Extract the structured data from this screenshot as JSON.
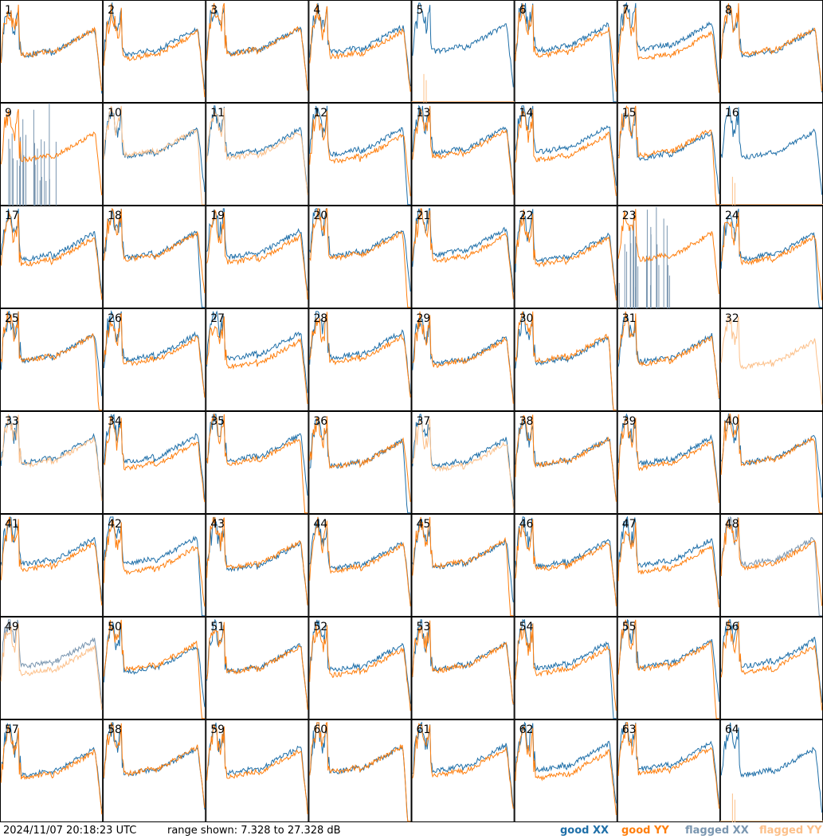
{
  "chart_data": {
    "type": "line",
    "panel_count": 64,
    "panel_labels": [
      "1",
      "2",
      "3",
      "4",
      "5",
      "6",
      "7",
      "8",
      "9",
      "10",
      "11",
      "12",
      "13",
      "14",
      "15",
      "16",
      "17",
      "18",
      "19",
      "20",
      "21",
      "22",
      "23",
      "24",
      "25",
      "26",
      "27",
      "28",
      "29",
      "30",
      "31",
      "32",
      "33",
      "34",
      "35",
      "36",
      "37",
      "38",
      "39",
      "40",
      "41",
      "42",
      "43",
      "44",
      "45",
      "46",
      "47",
      "48",
      "49",
      "50",
      "51",
      "52",
      "53",
      "54",
      "55",
      "56",
      "57",
      "58",
      "59",
      "60",
      "61",
      "62",
      "63",
      "64"
    ],
    "ylim": [
      7.328,
      27.328
    ],
    "series_colors": {
      "good_xx": "#1f6fa8",
      "good_yy": "#ff7f0e",
      "flagged_xx": "#7a96b0",
      "flagged_yy": "#fcc08a"
    },
    "flagged_xx_panels": [
      9,
      23,
      48,
      49
    ],
    "flagged_yy_panels": [
      5,
      10,
      11,
      16,
      32,
      33,
      37,
      49,
      64
    ],
    "missing_xx_panels": [
      32
    ],
    "missing_yy_panels": [
      5,
      16,
      64
    ]
  },
  "footer": {
    "timestamp": "2024/11/07 20:18:23 UTC",
    "range_text": "range shown: 7.328 to 27.328 dB"
  },
  "legend": [
    {
      "label": "good XX",
      "color": "#1f6fa8"
    },
    {
      "label": "good YY",
      "color": "#ff7f0e"
    },
    {
      "label": "flagged XX",
      "color": "#7a96b0"
    },
    {
      "label": "flagged YY",
      "color": "#fcc08a"
    }
  ]
}
